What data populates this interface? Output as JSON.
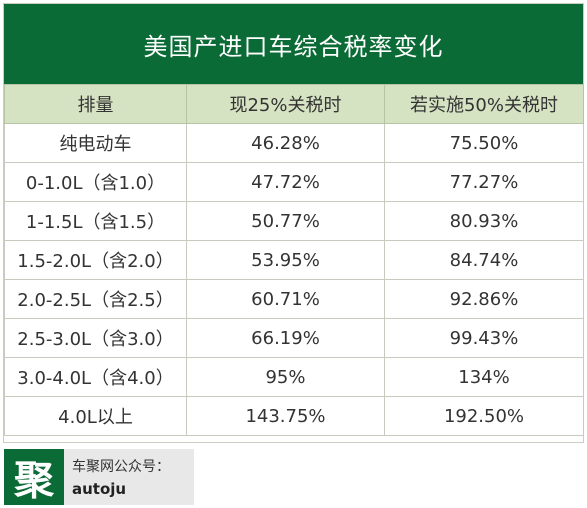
{
  "title": "美国产进口车综合税率变化",
  "headers": [
    "排量",
    "现25%关税时",
    "若实施50%关税时"
  ],
  "rows": [
    {
      "displacement": "纯电动车",
      "current": "46.28%",
      "proposed": "75.50%"
    },
    {
      "displacement": "0-1.0L（含1.0）",
      "current": "47.72%",
      "proposed": "77.27%"
    },
    {
      "displacement": "1-1.5L（含1.5）",
      "current": "50.77%",
      "proposed": "80.93%"
    },
    {
      "displacement": "1.5-2.0L（含2.0）",
      "current": "53.95%",
      "proposed": "84.74%"
    },
    {
      "displacement": "2.0-2.5L（含2.5）",
      "current": "60.71%",
      "proposed": "92.86%"
    },
    {
      "displacement": "2.5-3.0L（含3.0）",
      "current": "66.19%",
      "proposed": "99.43%"
    },
    {
      "displacement": "3.0-4.0L（含4.0）",
      "current": "95%",
      "proposed": "134%"
    },
    {
      "displacement": "4.0L以上",
      "current": "143.75%",
      "proposed": "192.50%"
    }
  ],
  "footer": {
    "logo_char": "聚",
    "line1": "车聚网公众号：",
    "line2": "autoju"
  },
  "colors": {
    "brand_green": "#0b6b36",
    "header_bg": "#d6e3c2",
    "footer_bg": "#e8e8e8"
  }
}
